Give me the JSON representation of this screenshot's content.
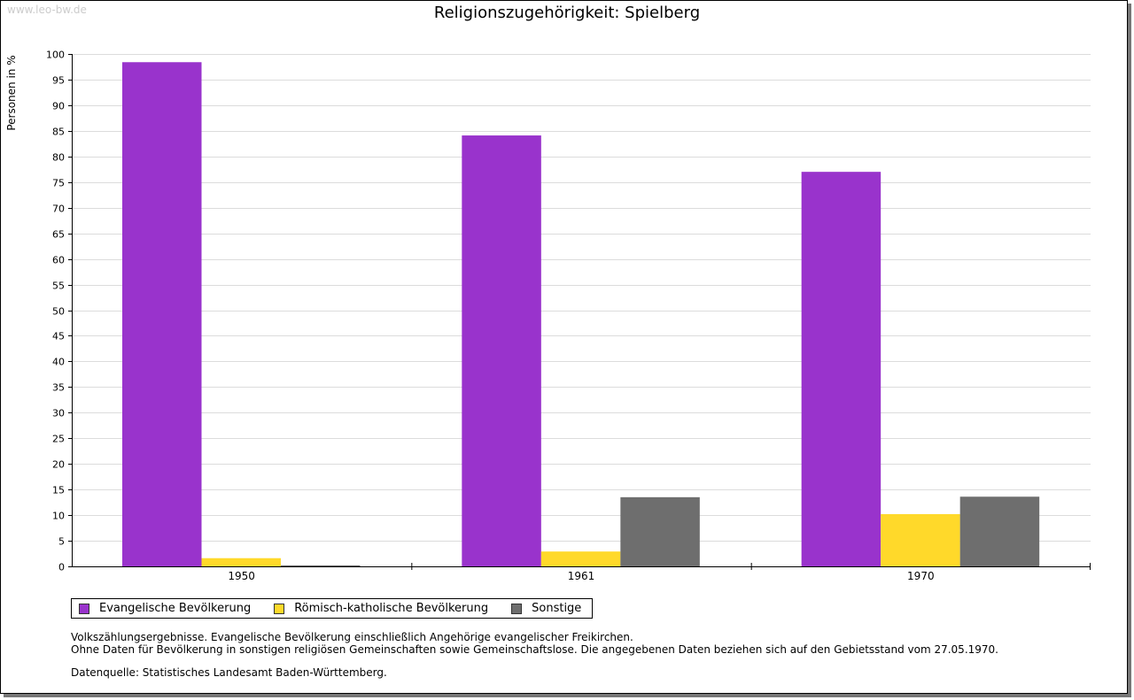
{
  "watermark": "www.leo-bw.de",
  "notes": [
    "Volkszählungsergebnisse. Evangelische Bevölkerung einschließlich Angehörige evangelischer Freikirchen.",
    "Ohne Daten für Bevölkerung in sonstigen religiösen Gemeinschaften sowie Gemeinschaftslose. Die angegebenen Daten beziehen sich auf den Gebietsstand vom 27.05.1970."
  ],
  "source": "Datenquelle: Statistisches Landesamt Baden-Württemberg.",
  "chart_data": {
    "type": "bar",
    "title": "Religionszugehörigkeit: Spielberg",
    "xlabel": "",
    "ylabel": "Personen in %",
    "ylim": [
      0,
      100
    ],
    "yticks": [
      0,
      5,
      10,
      15,
      20,
      25,
      30,
      35,
      40,
      45,
      50,
      55,
      60,
      65,
      70,
      75,
      80,
      85,
      90,
      95,
      100
    ],
    "grid": true,
    "legend_position": "bottom-left",
    "categories": [
      "1950",
      "1961",
      "1970"
    ],
    "series": [
      {
        "name": "Evangelische Bevölkerung",
        "color": "#9933cc",
        "values": [
          98.4,
          84.1,
          77.0
        ]
      },
      {
        "name": "Römisch-katholische Bevölkerung",
        "color": "#ffd92a",
        "values": [
          1.6,
          2.9,
          10.2
        ]
      },
      {
        "name": "Sonstige",
        "color": "#6e6e6e",
        "values": [
          0.2,
          13.5,
          13.6
        ]
      }
    ]
  }
}
